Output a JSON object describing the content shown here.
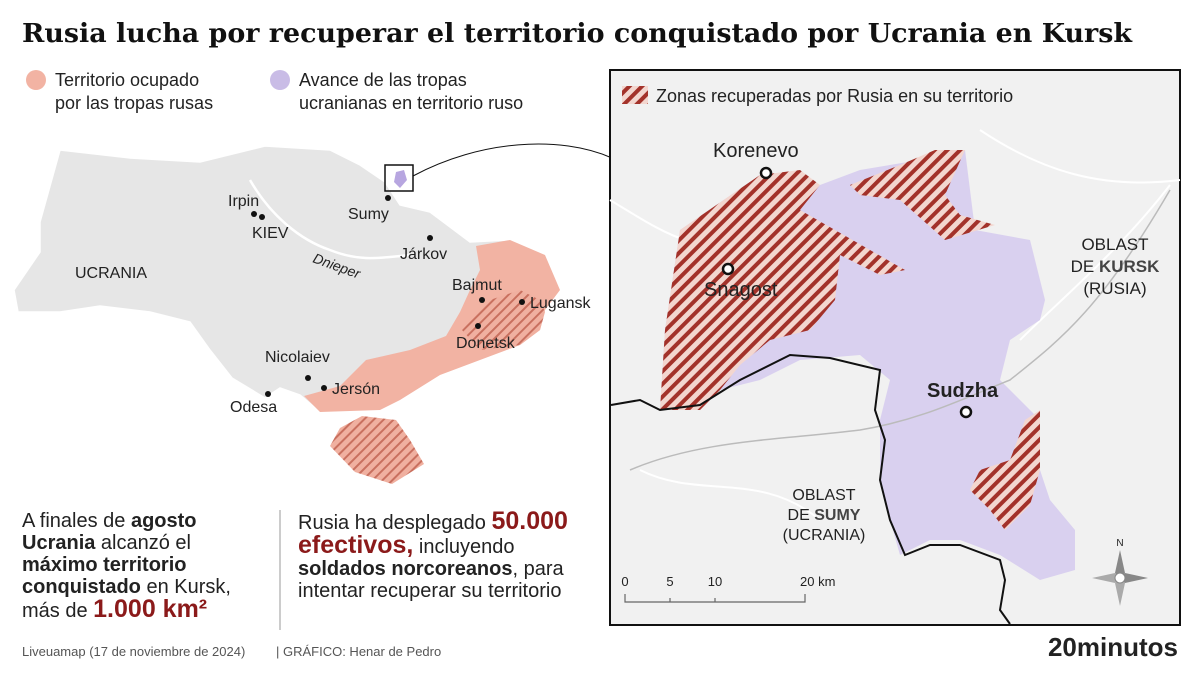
{
  "header": {
    "title": "Rusia lucha por recuperar el territorio conquistado por Ucrania en Kursk"
  },
  "legend": {
    "occupied": [
      "Territorio ocupado",
      "por las tropas rusas"
    ],
    "advance": [
      "Avance de las tropas",
      "ucranianas en territorio ruso"
    ]
  },
  "map": {
    "country": "UCRANIA",
    "river": "Dnieper",
    "cities": [
      "Irpin",
      "KIEV",
      "Sumy",
      "Járkov",
      "Bajmut",
      "Lugansk",
      "Donetsk",
      "Nicolaiev",
      "Jersón",
      "Odesa"
    ]
  },
  "inset": {
    "legend": "Zonas recuperadas por Rusia en su territorio",
    "places": [
      "Korenevo",
      "Snagost",
      "Sudzha"
    ],
    "kursk": [
      "OBLAST",
      "DE ",
      "KURSK",
      "(RUSIA)"
    ],
    "sumy": [
      "OBLAST",
      "DE ",
      "SUMY",
      "(UCRANIA)"
    ],
    "scale": [
      "0",
      "5",
      "10",
      "20 km"
    ],
    "compass": "N"
  },
  "notes": {
    "left": [
      "A finales de ",
      "agosto Ucrania",
      " alcanzó el ",
      "máximo territorio conquistado",
      " en Kursk, más de ",
      "1.000 km²"
    ],
    "right": [
      "Rusia ha desplegado ",
      "50.000 efectivos,",
      " incluyendo ",
      "soldados norcoreanos",
      ", para intentar recuperar su territorio"
    ]
  },
  "footer": {
    "source": "Liveuamap (17 de noviembre de 2024)",
    "credit": "|  GRÁFICO: Henar de Pedro",
    "brand": "20minutos"
  }
}
